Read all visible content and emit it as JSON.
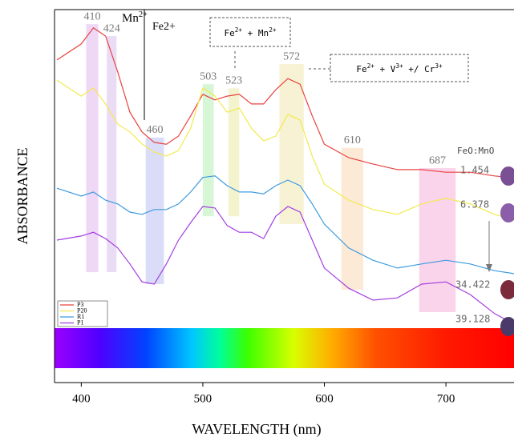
{
  "chart_data": {
    "type": "line",
    "x_label": "WAVELENGTH (nm)",
    "y_label": "ABSORBANCE",
    "xlim": [
      378,
      756
    ],
    "xticks": [
      400,
      500,
      600,
      700
    ],
    "ylim": [
      0,
      100
    ],
    "x": [
      380,
      400,
      410,
      420,
      430,
      440,
      450,
      460,
      470,
      480,
      490,
      500,
      510,
      520,
      530,
      540,
      550,
      560,
      570,
      580,
      590,
      600,
      620,
      640,
      660,
      680,
      700,
      720,
      740,
      756
    ],
    "series": [
      {
        "name": "P3",
        "color": "#e8423f",
        "values": [
          86.5,
          90.8,
          95.1,
          92.9,
          83.3,
          72.5,
          67.2,
          64.4,
          63.9,
          66.1,
          71.5,
          77.3,
          75.8,
          76.8,
          77.3,
          74.7,
          74.7,
          78.5,
          81.5,
          80.0,
          71.5,
          63.9,
          60.3,
          58.6,
          57.1,
          57.1,
          56.4,
          56.4,
          55.4,
          54.9
        ]
      },
      {
        "name": "P20",
        "color": "#f2ea4e",
        "values": [
          81.1,
          76.8,
          79.0,
          74.7,
          69.3,
          67.2,
          64.0,
          61.8,
          60.7,
          62.2,
          68.2,
          79.0,
          76.8,
          72.5,
          73.6,
          68.2,
          64.8,
          66.1,
          71.9,
          70.4,
          60.7,
          53.2,
          48.9,
          46.4,
          45.1,
          47.9,
          49.4,
          47.9,
          45.1,
          43.6
        ]
      },
      {
        "name": "R1",
        "color": "#3d9be0",
        "values": [
          52.1,
          50.0,
          51.1,
          48.9,
          47.9,
          45.7,
          45.1,
          46.4,
          46.4,
          47.9,
          51.1,
          55.0,
          55.4,
          52.8,
          51.1,
          51.1,
          50.6,
          52.8,
          54.3,
          52.8,
          47.9,
          42.5,
          36.1,
          32.8,
          30.7,
          31.8,
          32.8,
          31.8,
          30.0,
          29.2
        ]
      },
      {
        "name": "P1",
        "color": "#a43ee0",
        "values": [
          38.2,
          39.3,
          40.3,
          38.6,
          36.1,
          31.8,
          27.0,
          26.4,
          31.8,
          38.2,
          42.9,
          47.2,
          46.8,
          42.1,
          40.3,
          40.3,
          38.6,
          44.6,
          47.2,
          45.7,
          38.2,
          30.7,
          25.3,
          22.1,
          22.7,
          26.4,
          27.0,
          23.6,
          18.5,
          15.7
        ]
      }
    ],
    "legend_loc": "lower left",
    "bands": [
      {
        "label": "410",
        "from": 404,
        "to": 414,
        "y": [
          29.6,
          96.1
        ],
        "color": "#ecd0f5"
      },
      {
        "label": "424",
        "from": 421,
        "to": 429,
        "y": [
          29.6,
          92.9
        ],
        "color": "#e8d6f3"
      },
      {
        "label": "460",
        "from": 453,
        "to": 468,
        "y": [
          26.4,
          65.7
        ],
        "color": "#d3d6f7"
      },
      {
        "label": "503",
        "from": 500,
        "to": 509,
        "y": [
          44.6,
          80.0
        ],
        "color": "#cff5cf"
      },
      {
        "label": "523",
        "from": 521,
        "to": 530,
        "y": [
          44.6,
          78.9
        ],
        "color": "#f1f1c6"
      },
      {
        "label": "572",
        "from": 563,
        "to": 583,
        "y": [
          42.5,
          85.4
        ],
        "color": "#f6f0cc"
      },
      {
        "label": "610",
        "from": 614,
        "to": 632,
        "y": [
          24.9,
          62.9
        ],
        "color": "#fbe6cf"
      },
      {
        "label": "687",
        "from": 678,
        "to": 708,
        "y": [
          18.9,
          57.5
        ],
        "color": "#f9cde6"
      }
    ],
    "annotations": {
      "mn": [
        {
          "text": "Mn"
        },
        {
          "sup": "2+"
        }
      ],
      "fe": "Fe2+",
      "box1": [
        {
          "text": "Fe"
        },
        {
          "sup": "2+"
        },
        {
          "text": " + Mn"
        },
        {
          "sup": "2+"
        }
      ],
      "box2": [
        {
          "text": "Fe"
        },
        {
          "sup": "2+"
        },
        {
          "text": " + V"
        },
        {
          "sup": "3+"
        },
        {
          "text": " +/ Cr"
        },
        {
          "sup": "3+"
        }
      ]
    },
    "ratio_title": "FeO:MnO",
    "ratio_labels": [
      "1.454",
      "6.378",
      "34.422",
      "39.128"
    ]
  }
}
